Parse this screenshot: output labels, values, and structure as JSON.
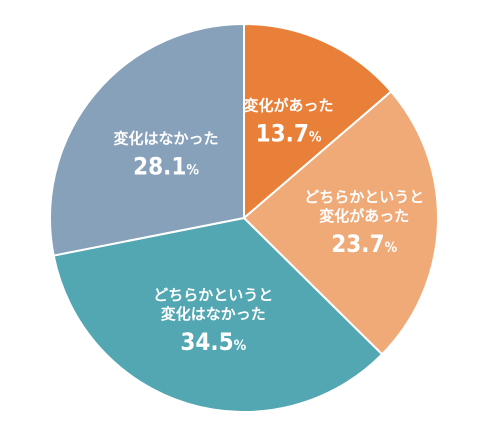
{
  "chart_data": {
    "type": "pie",
    "title": "",
    "slices": [
      {
        "label_lines": [
          "変化があった"
        ],
        "value": 13.7,
        "value_text": "13.7",
        "unit": "%",
        "color": "#E8803A"
      },
      {
        "label_lines": [
          "どちらかというと",
          "変化があった"
        ],
        "value": 23.7,
        "value_text": "23.7",
        "unit": "%",
        "color": "#F0AA78"
      },
      {
        "label_lines": [
          "どちらかというと",
          "変化はなかった"
        ],
        "value": 34.5,
        "value_text": "34.5",
        "unit": "%",
        "color": "#52A7B2"
      },
      {
        "label_lines": [
          "変化はなかった"
        ],
        "value": 28.1,
        "value_text": "28.1",
        "unit": "%",
        "color": "#87A1BA"
      }
    ],
    "start_angle": "12 o'clock",
    "direction": "clockwise",
    "legend": "none"
  }
}
